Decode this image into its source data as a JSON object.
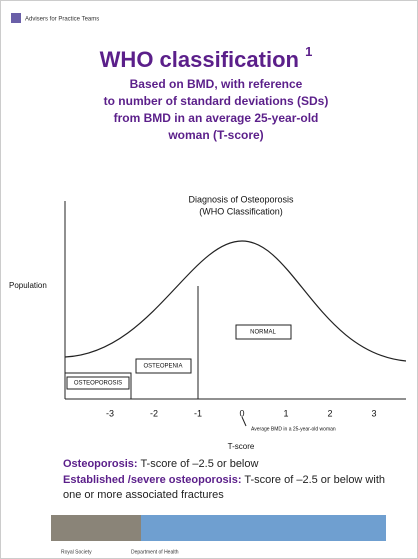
{
  "header": {
    "logo": "Advisers for Practice Teams",
    "title": "WHO classification",
    "title_note": "1",
    "subtitle": [
      "Based on BMD, with reference",
      "to number of standard deviations (SDs)",
      "from BMD in an average 25-year-old",
      "woman (T-score)"
    ]
  },
  "diagram": {
    "title": "Diagnosis of Osteoporosis",
    "subtitle": "(WHO Classification)",
    "y_label": "Population",
    "x_label": "T-score",
    "ticks": [
      "-3",
      "-2",
      "-1",
      "0",
      "1",
      "2",
      "3"
    ],
    "regions": [
      "OSTEOPOROSIS",
      "OSTEOPENIA",
      "NORMAL"
    ],
    "annotation": "Average BMD in a 25-year-old woman"
  },
  "definitions": [
    {
      "term": "Osteoporosis:",
      "text": "T-score of –2.5 or below"
    },
    {
      "term": "Established /severe osteoporosis:",
      "text": "T-score of –2.5 or below with one or more associated fractures"
    }
  ],
  "footer": {
    "left": "Royal Society",
    "right": "Department of Health"
  }
}
